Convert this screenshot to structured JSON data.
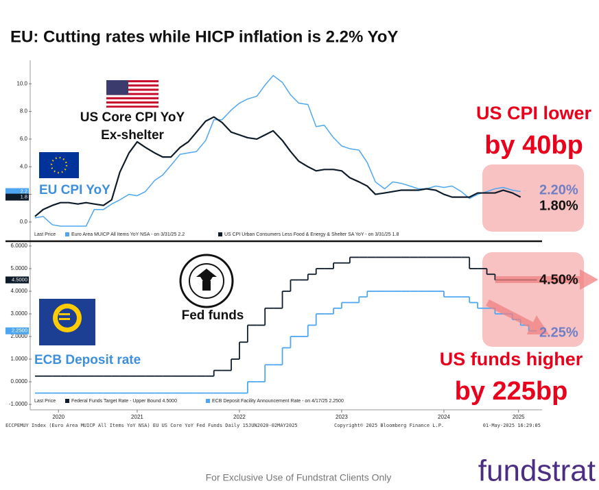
{
  "title": "EU: Cutting rates while HICP inflation is 2.2% YoY",
  "chart_data": [
    {
      "type": "line",
      "legend_title": "Last Price",
      "x": [
        2020.5,
        2020.58,
        2020.67,
        2020.75,
        2020.83,
        2020.92,
        2021,
        2021.08,
        2021.17,
        2021.25,
        2021.33,
        2021.42,
        2021.5,
        2021.58,
        2021.67,
        2021.75,
        2021.83,
        2021.92,
        2022,
        2022.08,
        2022.17,
        2022.25,
        2022.33,
        2022.42,
        2022.5,
        2022.58,
        2022.67,
        2022.75,
        2022.83,
        2022.92,
        2023,
        2023.08,
        2023.17,
        2023.25,
        2023.33,
        2023.42,
        2023.5,
        2023.58,
        2023.67,
        2023.75,
        2023.83,
        2023.92,
        2024,
        2024.08,
        2024.17,
        2024.25,
        2024.33,
        2024.42,
        2024.5,
        2024.58,
        2024.67,
        2024.75,
        2024.83,
        2024.92,
        2025,
        2025.08,
        2025.17,
        2025.25
      ],
      "xlim": [
        2020.46,
        2025.46
      ],
      "ylim": [
        -0.55,
        11.7
      ],
      "yticks": [
        {
          "value": 0,
          "label": "0.0"
        },
        {
          "value": 2,
          "label": "2.0"
        },
        {
          "value": 4,
          "label": "4.0"
        },
        {
          "value": 6,
          "label": "6.0"
        },
        {
          "value": 8,
          "label": "8.0"
        },
        {
          "value": 10,
          "label": "10.0"
        }
      ],
      "grid": false,
      "series": [
        {
          "name": "Euro Area MUICP All Items YoY NSA - on 3/31/25 2.2",
          "color": "#4ea6f2",
          "last_label": "2.2",
          "values": [
            0.3,
            0.4,
            -0.2,
            -0.3,
            -0.3,
            -0.3,
            -0.3,
            0.9,
            0.9,
            1.3,
            1.6,
            2.0,
            1.9,
            2.2,
            3.0,
            3.4,
            4.1,
            4.9,
            5.0,
            5.1,
            5.9,
            7.4,
            7.4,
            8.1,
            8.6,
            8.9,
            9.1,
            9.9,
            10.6,
            10.1,
            9.2,
            8.6,
            8.5,
            6.9,
            7.0,
            6.1,
            5.5,
            5.3,
            5.2,
            4.3,
            2.9,
            2.4,
            2.9,
            2.8,
            2.6,
            2.4,
            2.4,
            2.6,
            2.5,
            2.6,
            2.2,
            1.7,
            2.0,
            2.2,
            2.4,
            2.5,
            2.3,
            2.2
          ]
        },
        {
          "name": "US CPI Urban Consumers Less Food & Energy & Shelter SA YoY - on 3/31/25 1.8",
          "color": "#0d1b2a",
          "last_label": "1.8",
          "values": [
            0.4,
            0.9,
            1.2,
            1.4,
            1.4,
            1.3,
            1.4,
            1.3,
            1.2,
            1.6,
            3.6,
            5.0,
            5.8,
            5.4,
            5.0,
            4.7,
            4.7,
            5.4,
            5.8,
            6.5,
            7.3,
            7.6,
            7.2,
            6.5,
            6.3,
            6.1,
            6.0,
            6.3,
            6.6,
            5.9,
            5.1,
            4.4,
            4.0,
            3.7,
            3.8,
            3.8,
            3.7,
            3.2,
            2.9,
            2.6,
            2.0,
            2.1,
            2.2,
            2.3,
            2.3,
            2.3,
            2.4,
            2.3,
            2.0,
            1.8,
            1.8,
            1.8,
            2.1,
            2.1,
            2.1,
            2.3,
            2.1,
            1.8
          ]
        }
      ],
      "annotations": [
        "US Core CPI YoY",
        "Ex-shelter",
        "EU CPI YoY",
        "US CPI lower",
        "by 40bp",
        "2.20%",
        "1.80%"
      ]
    },
    {
      "type": "step",
      "legend_title": "Last Price",
      "x": [
        2020.5,
        2020.58,
        2020.67,
        2020.75,
        2020.83,
        2020.92,
        2021,
        2021.08,
        2021.17,
        2021.25,
        2021.33,
        2021.42,
        2021.5,
        2021.58,
        2021.67,
        2021.75,
        2021.83,
        2021.92,
        2022,
        2022.08,
        2022.17,
        2022.25,
        2022.33,
        2022.42,
        2022.5,
        2022.58,
        2022.67,
        2022.75,
        2022.83,
        2022.92,
        2023,
        2023.08,
        2023.17,
        2023.25,
        2023.33,
        2023.42,
        2023.5,
        2023.58,
        2023.67,
        2023.75,
        2023.83,
        2023.92,
        2024,
        2024.08,
        2024.17,
        2024.25,
        2024.33,
        2024.42,
        2024.5,
        2024.58,
        2024.67,
        2024.75,
        2024.83,
        2024.92,
        2025,
        2025.08,
        2025.17,
        2025.25,
        2025.33
      ],
      "xlim": [
        2020.46,
        2025.46
      ],
      "xticks": [
        {
          "value": 2020.73,
          "label": "2020"
        },
        {
          "value": 2021.5,
          "label": "2021"
        },
        {
          "value": 2022.5,
          "label": "2022"
        },
        {
          "value": 2023.5,
          "label": "2023"
        },
        {
          "value": 2024.5,
          "label": "2024"
        },
        {
          "value": 2025.23,
          "label": "2025"
        }
      ],
      "ylim": [
        -1.24,
        6.21
      ],
      "yticks": [
        {
          "value": -1,
          "label": "-1.0000"
        },
        {
          "value": 0,
          "label": "0.0000"
        },
        {
          "value": 1,
          "label": "1.0000"
        },
        {
          "value": 2,
          "label": "2.0000"
        },
        {
          "value": 3,
          "label": "3.0000"
        },
        {
          "value": 4,
          "label": "4.0000"
        },
        {
          "value": 5,
          "label": "5.0000"
        },
        {
          "value": 6,
          "label": "6.0000"
        }
      ],
      "grid": false,
      "series": [
        {
          "name": "Federal Funds Target Rate - Upper Bound 4.5000",
          "color": "#0d1b2a",
          "last_label": "4.5000",
          "values": [
            0.25,
            0.25,
            0.25,
            0.25,
            0.25,
            0.25,
            0.25,
            0.25,
            0.25,
            0.25,
            0.25,
            0.25,
            0.25,
            0.25,
            0.25,
            0.25,
            0.25,
            0.25,
            0.25,
            0.25,
            0.25,
            0.5,
            0.5,
            1.0,
            1.75,
            2.5,
            2.5,
            3.25,
            3.25,
            4.0,
            4.5,
            4.5,
            4.75,
            5.0,
            5.0,
            5.25,
            5.25,
            5.5,
            5.5,
            5.5,
            5.5,
            5.5,
            5.5,
            5.5,
            5.5,
            5.5,
            5.5,
            5.5,
            5.5,
            5.5,
            5.5,
            5.0,
            5.0,
            4.75,
            4.5,
            4.5,
            4.5,
            4.5,
            4.5
          ]
        },
        {
          "name": "ECB Deposit Facility Announcement Rate - on 4/17/25 2.2500",
          "color": "#4ea6f2",
          "last_label": "2.2500",
          "values": [
            -0.5,
            -0.5,
            -0.5,
            -0.5,
            -0.5,
            -0.5,
            -0.5,
            -0.5,
            -0.5,
            -0.5,
            -0.5,
            -0.5,
            -0.5,
            -0.5,
            -0.5,
            -0.5,
            -0.5,
            -0.5,
            -0.5,
            -0.5,
            -0.5,
            -0.5,
            -0.5,
            -0.5,
            -0.5,
            0.0,
            0.0,
            0.75,
            0.75,
            1.5,
            2.0,
            2.0,
            2.5,
            3.0,
            3.0,
            3.25,
            3.5,
            3.5,
            3.75,
            4.0,
            4.0,
            4.0,
            4.0,
            4.0,
            4.0,
            4.0,
            4.0,
            4.0,
            3.75,
            3.75,
            3.75,
            3.5,
            3.25,
            3.25,
            3.0,
            3.0,
            2.75,
            2.5,
            2.25
          ]
        }
      ],
      "annotations": [
        "Fed funds",
        "ECB Deposit rate",
        "4.50%",
        "2.25%",
        "US funds higher",
        "by 225bp"
      ]
    }
  ],
  "footer": {
    "source": "ECCPEMUY Index (Euro Area MUICP All Items YoY NSA) EU US Core YoY Fed Funds  Daily 15JUN2020-02MAY2025",
    "copyright": "Copyright© 2025 Bloomberg Finance L.P.",
    "timestamp": "01-May-2025 16:29:05",
    "disclaimer": "For Exclusive Use of Fundstrat Clients Only",
    "logo": "fundstrat"
  }
}
